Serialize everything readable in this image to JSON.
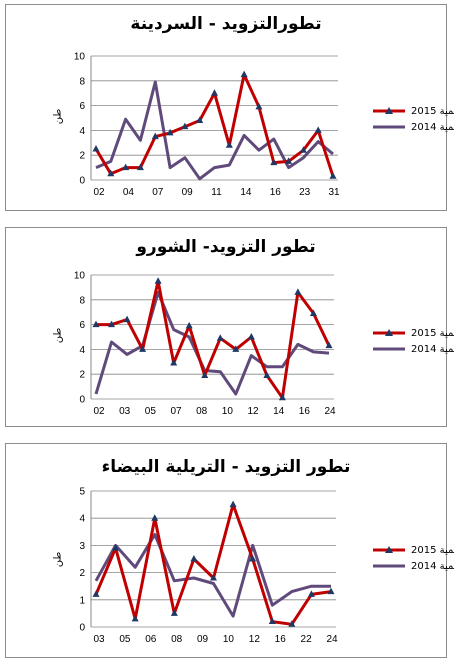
{
  "colors": {
    "series2015": "#c00000",
    "series2014": "#604a7b",
    "marker": "#1f3864"
  },
  "chart_data": [
    {
      "type": "line",
      "title": "تطورالتزويد - السردينة",
      "ylabel": "طن",
      "ylim": [
        0,
        10
      ],
      "yticks": [
        0,
        2,
        4,
        6,
        8,
        10
      ],
      "xtick_labels": [
        "02",
        "04",
        "07",
        "09",
        "11",
        "14",
        "16",
        "23",
        "31"
      ],
      "series": [
        {
          "name": "2015 الكمية",
          "values": [
            2.5,
            0.5,
            1.0,
            1.0,
            3.5,
            3.8,
            4.3,
            4.8,
            7.0,
            2.8,
            8.5,
            5.9,
            1.4,
            1.5,
            2.4,
            4.0,
            0.3
          ]
        },
        {
          "name": "2014 الكمية",
          "values": [
            1.0,
            1.5,
            4.9,
            3.2,
            7.9,
            1.0,
            1.8,
            0.1,
            1.0,
            1.2,
            3.6,
            2.4,
            3.3,
            1.0,
            1.8,
            3.1,
            2.1
          ]
        }
      ]
    },
    {
      "type": "line",
      "title": "تطور التزويد- الشورو",
      "ylabel": "طن",
      "ylim": [
        0,
        10
      ],
      "yticks": [
        0,
        2,
        4,
        6,
        8,
        10
      ],
      "xtick_labels": [
        "02",
        "03",
        "05",
        "07",
        "08",
        "10",
        "12",
        "14",
        "16",
        "24"
      ],
      "series": [
        {
          "name": "2015 الكمية",
          "values": [
            6.0,
            6.0,
            6.4,
            4.0,
            9.5,
            2.9,
            5.9,
            1.9,
            4.9,
            4.0,
            5.0,
            1.9,
            0.1,
            8.6,
            6.9,
            4.3
          ]
        },
        {
          "name": "2014 الكمية",
          "values": [
            0.4,
            4.6,
            3.6,
            4.3,
            8.6,
            5.6,
            5.0,
            2.3,
            2.2,
            0.4,
            3.5,
            2.6,
            2.6,
            4.4,
            3.8,
            3.7
          ]
        }
      ]
    },
    {
      "type": "line",
      "title": "تطور التزويد - التريلية البيضاء",
      "ylabel": "طن",
      "ylim": [
        0,
        5
      ],
      "yticks": [
        0,
        1,
        2,
        3,
        4,
        5
      ],
      "xtick_labels": [
        "03",
        "05",
        "06",
        "08",
        "09",
        "10",
        "12",
        "16",
        "22",
        "24"
      ],
      "series": [
        {
          "name": "2015 الكمية",
          "values": [
            1.2,
            2.9,
            0.3,
            4.0,
            0.5,
            2.5,
            1.8,
            4.5,
            2.5,
            0.2,
            0.1,
            1.2,
            1.3
          ]
        },
        {
          "name": "2014 الكمية",
          "values": [
            1.7,
            3.0,
            2.2,
            3.4,
            1.7,
            1.8,
            1.6,
            0.4,
            3.0,
            0.8,
            1.3,
            1.5,
            1.5
          ]
        }
      ]
    }
  ]
}
